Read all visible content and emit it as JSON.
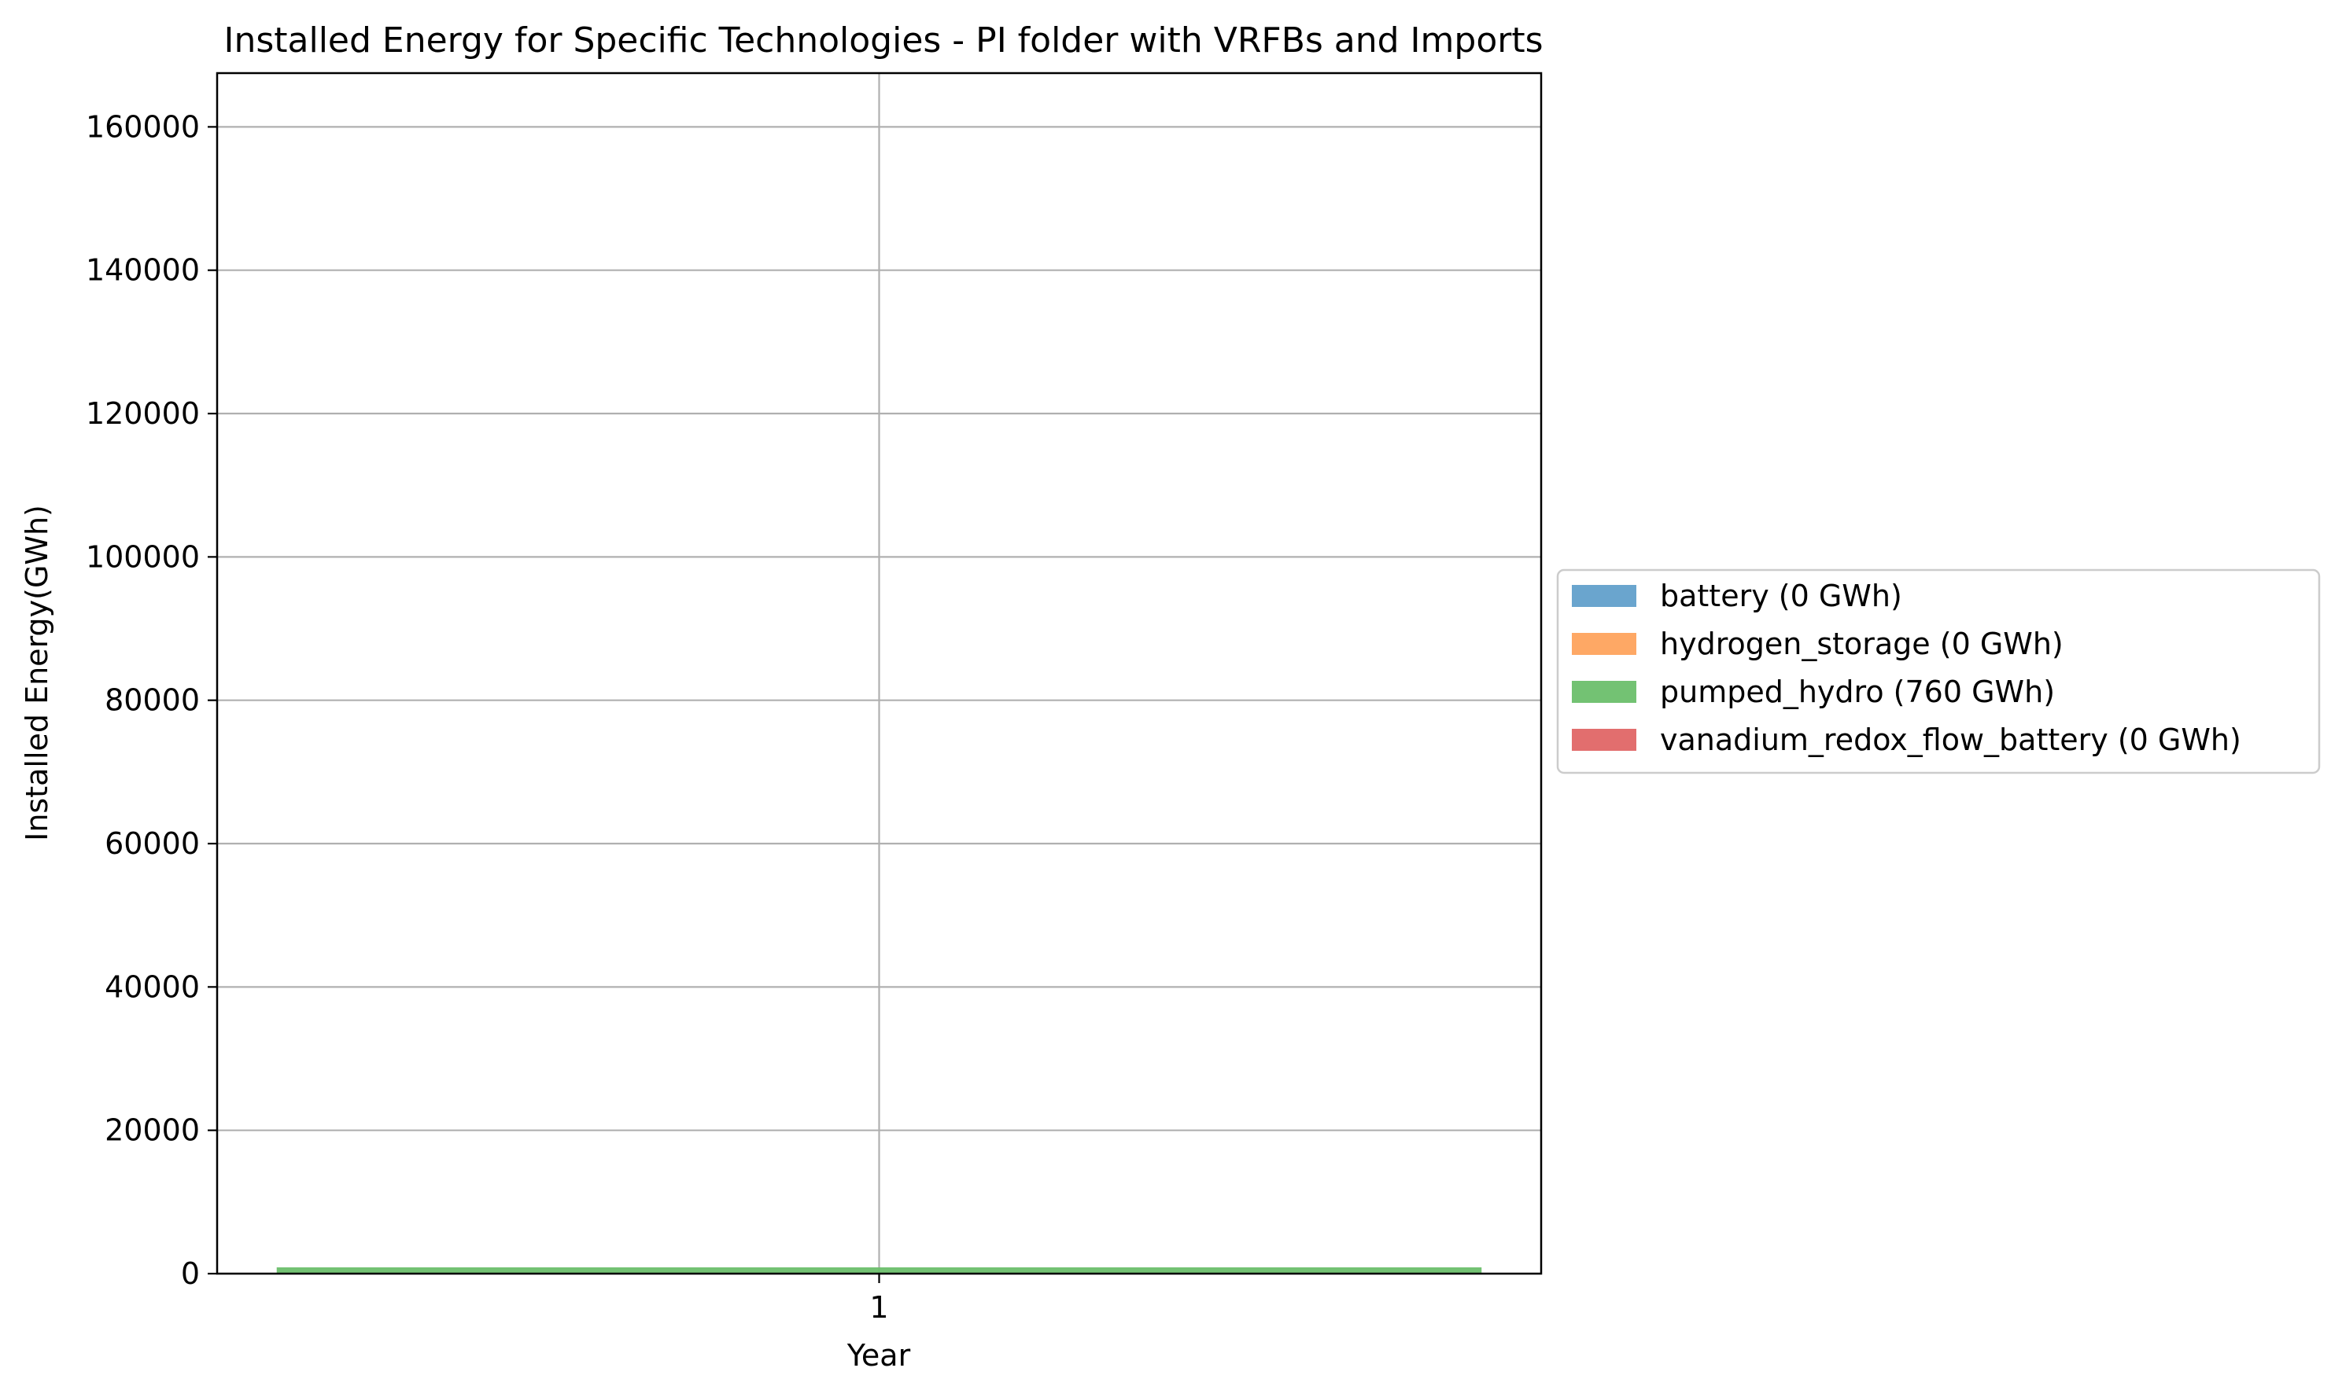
{
  "chart_data": {
    "type": "bar",
    "stacked": true,
    "title": "Installed Energy for Specific Technologies - PI folder with VRFBs and Imports",
    "xlabel": "Year",
    "ylabel": "Installed Energy(GWh)",
    "categories": [
      "1"
    ],
    "yticks": [
      0,
      20000,
      40000,
      60000,
      80000,
      100000,
      120000,
      140000,
      160000
    ],
    "ylim": [
      0,
      167500
    ],
    "grid": true,
    "legend_position": "right",
    "series": [
      {
        "name": "battery (0 GWh)",
        "values": [
          0
        ],
        "color": "#62a0cb"
      },
      {
        "name": "hydrogen_storage (0 GWh)",
        "values": [
          0
        ],
        "color": "#fea35d"
      },
      {
        "name": "pumped_hydro (760 GWh)",
        "values": [
          760
        ],
        "color": "#6bbf6b"
      },
      {
        "name": "vanadium_redox_flow_battery (0 GWh)",
        "values": [
          0
        ],
        "color": "#e06666"
      }
    ]
  }
}
